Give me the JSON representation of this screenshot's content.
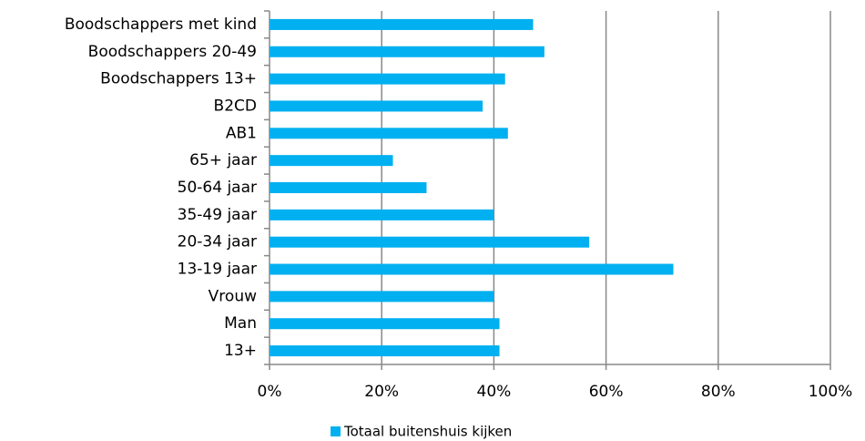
{
  "chart_data": {
    "type": "barh",
    "categories": [
      "Boodschappers met kind",
      "Boodschappers 20-49",
      "Boodschappers 13+",
      "B2CD",
      "AB1",
      "65+ jaar",
      "50-64 jaar",
      "35-49 jaar",
      "20-34 jaar",
      "13-19 jaar",
      "Vrouw",
      "Man",
      "13+"
    ],
    "series": [
      {
        "name": "Totaal buitenshuis kijken",
        "color": "#00b0f0",
        "values": [
          47,
          49,
          42,
          38,
          42.5,
          22,
          28,
          40,
          57,
          72,
          40,
          41,
          41
        ]
      }
    ],
    "xlim": [
      0,
      100
    ],
    "xticks": [
      {
        "value": 0,
        "label": "0%"
      },
      {
        "value": 20,
        "label": "20%"
      },
      {
        "value": 40,
        "label": "40%"
      },
      {
        "value": 60,
        "label": "60%"
      },
      {
        "value": 80,
        "label": "80%"
      },
      {
        "value": 100,
        "label": "100%"
      }
    ],
    "grid": true,
    "legend": "bottom"
  }
}
